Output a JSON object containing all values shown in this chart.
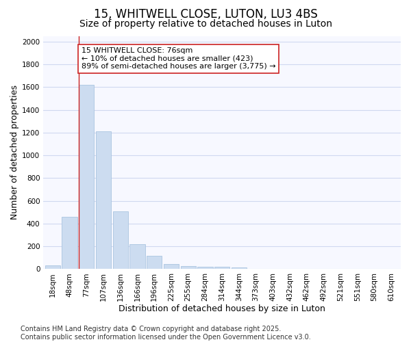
{
  "title": "15, WHITWELL CLOSE, LUTON, LU3 4BS",
  "subtitle": "Size of property relative to detached houses in Luton",
  "xlabel": "Distribution of detached houses by size in Luton",
  "ylabel": "Number of detached properties",
  "categories": [
    "18sqm",
    "48sqm",
    "77sqm",
    "107sqm",
    "136sqm",
    "166sqm",
    "196sqm",
    "225sqm",
    "255sqm",
    "284sqm",
    "314sqm",
    "344sqm",
    "373sqm",
    "403sqm",
    "432sqm",
    "462sqm",
    "492sqm",
    "521sqm",
    "551sqm",
    "580sqm",
    "610sqm"
  ],
  "values": [
    30,
    460,
    1620,
    1210,
    510,
    220,
    115,
    45,
    25,
    22,
    18,
    15,
    3,
    2,
    1,
    1,
    1,
    0,
    0,
    0,
    0
  ],
  "bar_color": "#ccdcf0",
  "bar_edge_color": "#aac4e0",
  "ylim": [
    0,
    2050
  ],
  "yticks": [
    0,
    200,
    400,
    600,
    800,
    1000,
    1200,
    1400,
    1600,
    1800,
    2000
  ],
  "vline_x_index": 2,
  "vline_color": "#cc2222",
  "annotation_text": "15 WHITWELL CLOSE: 76sqm\n← 10% of detached houses are smaller (423)\n89% of semi-detached houses are larger (3,775) →",
  "annotation_box_color": "#ffffff",
  "annotation_box_edge": "#cc2222",
  "footer_line1": "Contains HM Land Registry data © Crown copyright and database right 2025.",
  "footer_line2": "Contains public sector information licensed under the Open Government Licence v3.0.",
  "bg_color": "#ffffff",
  "plot_bg_color": "#f7f8ff",
  "grid_color": "#d0d8f0",
  "title_fontsize": 12,
  "subtitle_fontsize": 10,
  "axis_label_fontsize": 9,
  "tick_fontsize": 7.5,
  "footer_fontsize": 7,
  "annot_fontsize": 8
}
